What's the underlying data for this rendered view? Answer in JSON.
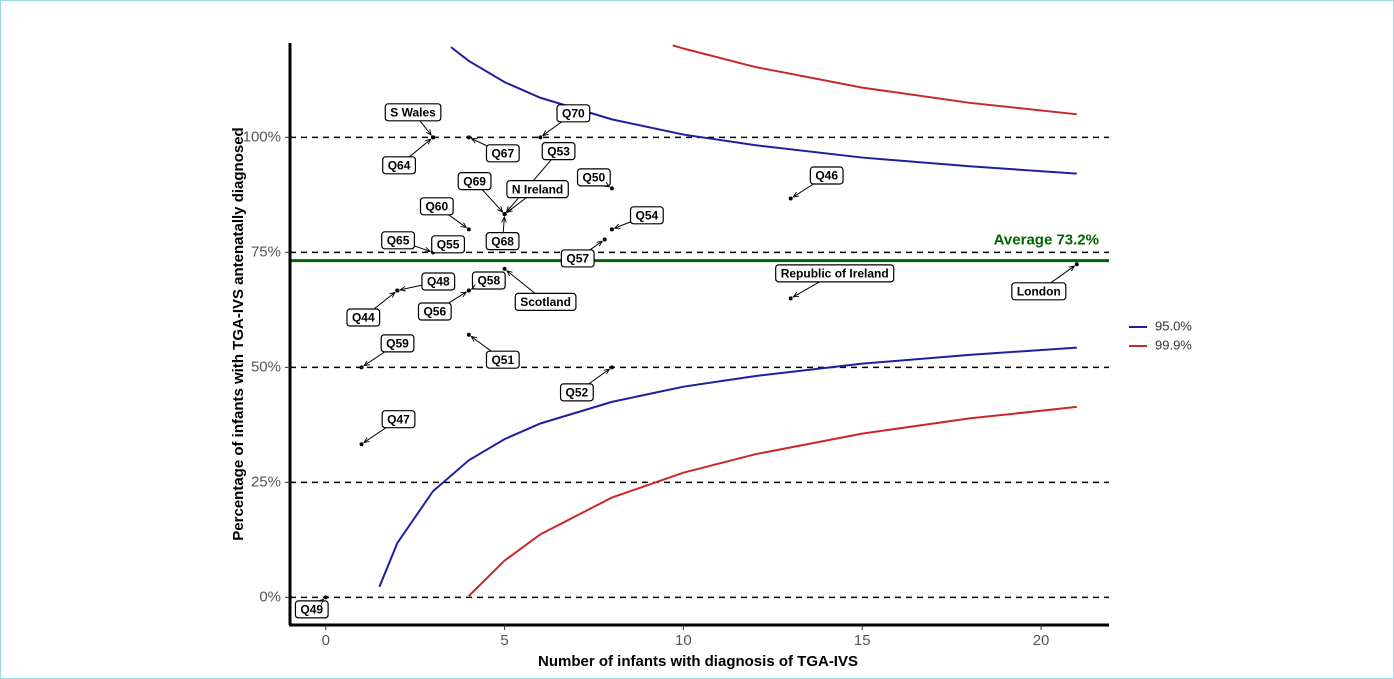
{
  "chart_data": {
    "type": "funnel",
    "x_label": "Number of infants with diagnosis of TGA-IVS",
    "y_label": "Percentage of infants with TGA-IVS antenatally diagnosed",
    "xlim": [
      -1,
      21.9
    ],
    "xticks": [
      0,
      5,
      10,
      15,
      20
    ],
    "ylim": [
      -6,
      120.5
    ],
    "yticks": [
      {
        "value": 0,
        "label": "0%"
      },
      {
        "value": 25,
        "label": "25%"
      },
      {
        "value": 50,
        "label": "50%"
      },
      {
        "value": 75,
        "label": "75%"
      },
      {
        "value": 100,
        "label": "100%"
      }
    ],
    "grid": "dashed",
    "average": 73.2,
    "average_label": "Average 73.2%",
    "average_color": "#006400",
    "legend_position": "right",
    "series": [
      {
        "name": "95.0%",
        "color": "#1f1f9e",
        "upper": {
          "x": [
            3.5,
            4,
            5,
            6,
            8,
            10,
            12,
            15,
            18,
            21
          ],
          "values": [
            119.6,
            116.6,
            112.0,
            108.6,
            103.9,
            100.6,
            98.3,
            95.6,
            93.7,
            92.1
          ]
        },
        "lower": {
          "x": [
            1.5,
            2,
            3,
            4,
            5,
            6,
            8,
            10,
            12,
            15,
            18,
            21
          ],
          "values": [
            2.3,
            11.8,
            23.1,
            29.8,
            34.4,
            37.8,
            42.5,
            45.8,
            48.1,
            50.8,
            52.7,
            54.3
          ]
        }
      },
      {
        "name": "99.9%",
        "color": "#c8282d",
        "upper": {
          "x": [
            9.7,
            10,
            12,
            15,
            18,
            21
          ],
          "values": [
            120.0,
            119.3,
            115.3,
            110.8,
            107.5,
            105.0
          ]
        },
        "lower": {
          "x": [
            4,
            5,
            6,
            8,
            10,
            12,
            15,
            18,
            21
          ],
          "values": [
            0.3,
            8.0,
            13.7,
            21.7,
            27.1,
            31.1,
            35.6,
            38.9,
            41.4
          ]
        }
      }
    ],
    "points": [
      {
        "label": "Q49",
        "x": 0,
        "y": 0
      },
      {
        "label": "Q47",
        "x": 1,
        "y": 33.3
      },
      {
        "label": "Q59",
        "x": 1,
        "y": 50
      },
      {
        "label": "Q44",
        "x": 2,
        "y": 66.7
      },
      {
        "label": "Q48",
        "x": 2,
        "y": 66.7
      },
      {
        "label": "S Wales",
        "x": 3,
        "y": 100
      },
      {
        "label": "Q64",
        "x": 3,
        "y": 100
      },
      {
        "label": "Q67",
        "x": 4,
        "y": 100
      },
      {
        "label": "Q70",
        "x": 6,
        "y": 100
      },
      {
        "label": "Q53",
        "x": 5,
        "y": 83.3
      },
      {
        "label": "N Ireland",
        "x": 5,
        "y": 83.3
      },
      {
        "label": "Q69",
        "x": 5,
        "y": 83.3
      },
      {
        "label": "Q68",
        "x": 5,
        "y": 83.3
      },
      {
        "label": "Q50",
        "x": 8,
        "y": 88.9
      },
      {
        "label": "Q60",
        "x": 4,
        "y": 80
      },
      {
        "label": "Q65",
        "x": 3,
        "y": 75
      },
      {
        "label": "Q55",
        "x": 3,
        "y": 75
      },
      {
        "label": "Q54",
        "x": 8,
        "y": 80
      },
      {
        "label": "Q57",
        "x": 7.8,
        "y": 77.8
      },
      {
        "label": "Q58",
        "x": 4,
        "y": 66.7
      },
      {
        "label": "Q56",
        "x": 4,
        "y": 66.7
      },
      {
        "label": "Scotland",
        "x": 5,
        "y": 71.4
      },
      {
        "label": "Q51",
        "x": 4,
        "y": 57.1
      },
      {
        "label": "Q52",
        "x": 8,
        "y": 50
      },
      {
        "label": "Q46",
        "x": 13,
        "y": 86.7
      },
      {
        "label": "Republic of Ireland",
        "x": 13,
        "y": 65
      },
      {
        "label": "London",
        "x": 21,
        "y": 72.4
      }
    ]
  }
}
